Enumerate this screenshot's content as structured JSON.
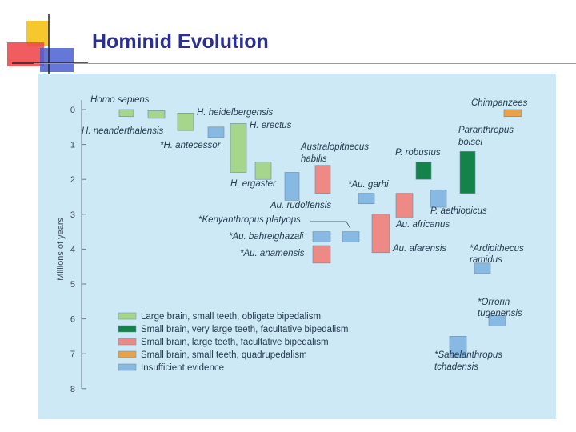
{
  "slide": {
    "title": "Hominid Evolution"
  },
  "colors": {
    "panel_bg": "#cde9f6",
    "title": "#2b2f8f",
    "logo_yellow": "#f6c82e",
    "logo_red": "#ef4a4f",
    "logo_blue": "#4a5fd0"
  },
  "chart_data": {
    "type": "range-bar",
    "ylabel": "Millions of years",
    "yticks": [
      "0",
      "1",
      "2",
      "3",
      "4",
      "5",
      "6",
      "7",
      "8"
    ],
    "ylim": [
      0,
      8
    ],
    "y_inverted": true,
    "legend": [
      {
        "key": "large_brain",
        "label": "Large brain, small teeth, obligate bipedalism",
        "color": "#a6d58c"
      },
      {
        "key": "very_large_teeth",
        "label": "Small brain, very large teeth, facultative bipedalism",
        "color": "#14834a"
      },
      {
        "key": "large_teeth",
        "label": "Small brain, large teeth, facultative bipedalism",
        "color": "#ee8a86"
      },
      {
        "key": "quadrupedalism",
        "label": "Small brain, small teeth, quadrupedalism",
        "color": "#eaa147"
      },
      {
        "key": "insufficient",
        "label": "Insufficient evidence",
        "color": "#88b9e3"
      }
    ],
    "species": [
      {
        "label": "Homo sapiens",
        "group": "large_brain",
        "start": 0.0,
        "end": 0.2
      },
      {
        "label": "H. neanderthalensis",
        "group": "large_brain",
        "start": 0.03,
        "end": 0.25
      },
      {
        "label": "H. heidelbergensis",
        "group": "large_brain",
        "start": 0.1,
        "end": 0.6
      },
      {
        "label": "*H. antecessor",
        "group": "insufficient",
        "start": 0.5,
        "end": 0.8
      },
      {
        "label": "H. erectus",
        "group": "large_brain",
        "start": 0.4,
        "end": 1.8
      },
      {
        "label": "H. ergaster",
        "group": "large_brain",
        "start": 1.5,
        "end": 2.0
      },
      {
        "label": "Au. rudolfensis",
        "group": "insufficient",
        "start": 1.8,
        "end": 2.6
      },
      {
        "label": "Australopithecus habilis",
        "group": "large_teeth",
        "start": 1.6,
        "end": 2.4
      },
      {
        "label": "*Au. garhi",
        "group": "insufficient",
        "start": 2.4,
        "end": 2.7
      },
      {
        "label": "Au. africanus",
        "group": "large_teeth",
        "start": 2.4,
        "end": 3.1
      },
      {
        "label": "P. robustus",
        "group": "very_large_teeth",
        "start": 1.5,
        "end": 2.0
      },
      {
        "label": "P. aethiopicus",
        "group": "insufficient",
        "start": 2.3,
        "end": 2.8
      },
      {
        "label": "Paranthropus boisei",
        "group": "very_large_teeth",
        "start": 1.2,
        "end": 2.4
      },
      {
        "label": "Chimpanzees",
        "group": "quadrupedalism",
        "start": 0.0,
        "end": 0.2
      },
      {
        "label": "*Kenyanthropus platyops",
        "group": "insufficient",
        "start": 3.5,
        "end": 3.8
      },
      {
        "label": "*Au. bahrelghazali",
        "group": "insufficient",
        "start": 3.5,
        "end": 3.8
      },
      {
        "label": "Au. afarensis",
        "group": "large_teeth",
        "start": 3.0,
        "end": 4.1
      },
      {
        "label": "*Au. anamensis",
        "group": "large_teeth",
        "start": 3.9,
        "end": 4.4
      },
      {
        "label": "*Ardipithecus ramidus",
        "group": "insufficient",
        "start": 4.4,
        "end": 4.7
      },
      {
        "label": "*Orrorin tugenensis",
        "group": "insufficient",
        "start": 5.9,
        "end": 6.2
      },
      {
        "label": "*Sahelanthropus tchadensis",
        "group": "insufficient",
        "start": 6.5,
        "end": 7.1
      }
    ]
  }
}
